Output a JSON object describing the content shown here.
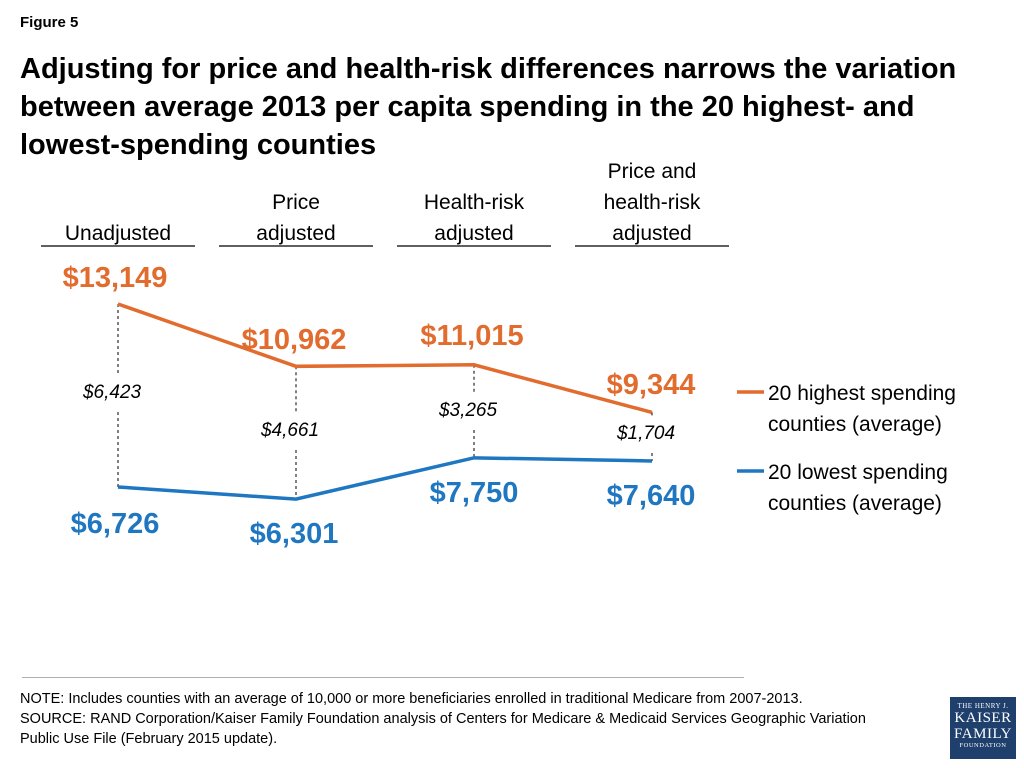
{
  "figure_label": "Figure 5",
  "title": "Adjusting for price and health-risk differences narrows the variation between average 2013 per capita spending in the 20 highest- and lowest-spending counties",
  "colors": {
    "highest": "#e26b2e",
    "lowest": "#1f77c1"
  },
  "chart_data": {
    "type": "line",
    "categories": [
      [
        "Unadjusted"
      ],
      [
        "Price",
        "adjusted"
      ],
      [
        "Health-risk",
        "adjusted"
      ],
      [
        "Price and",
        "health-risk",
        "adjusted"
      ]
    ],
    "series": [
      {
        "name": "20 highest spending counties (average)",
        "legend_lines": [
          "20 highest spending",
          "counties (average)"
        ],
        "values": [
          13149,
          10962,
          11015,
          9344
        ],
        "labels": [
          "$13,149",
          "$10,962",
          "$11,015",
          "$9,344"
        ]
      },
      {
        "name": "20 lowest spending counties (average)",
        "legend_lines": [
          "20 lowest spending",
          "counties (average)"
        ],
        "values": [
          6726,
          6301,
          7750,
          7640
        ],
        "labels": [
          "$6,726",
          "$6,301",
          "$7,750",
          "$7,640"
        ]
      }
    ],
    "differences": [
      "$6,423",
      "$4,661",
      "$3,265",
      "$1,704"
    ],
    "legend_position": "right"
  },
  "notes": [
    "NOTE: Includes counties with an average of 10,000 or more beneficiaries enrolled in traditional Medicare from 2007-2013.",
    "SOURCE: RAND Corporation/Kaiser Family Foundation analysis of Centers for Medicare & Medicaid Services Geographic Variation",
    "Public Use File (February 2015 update)."
  ],
  "logo": {
    "line1": "THE HENRY J.",
    "line2": "KAISER",
    "line3": "FAMILY",
    "line4": "FOUNDATION"
  }
}
